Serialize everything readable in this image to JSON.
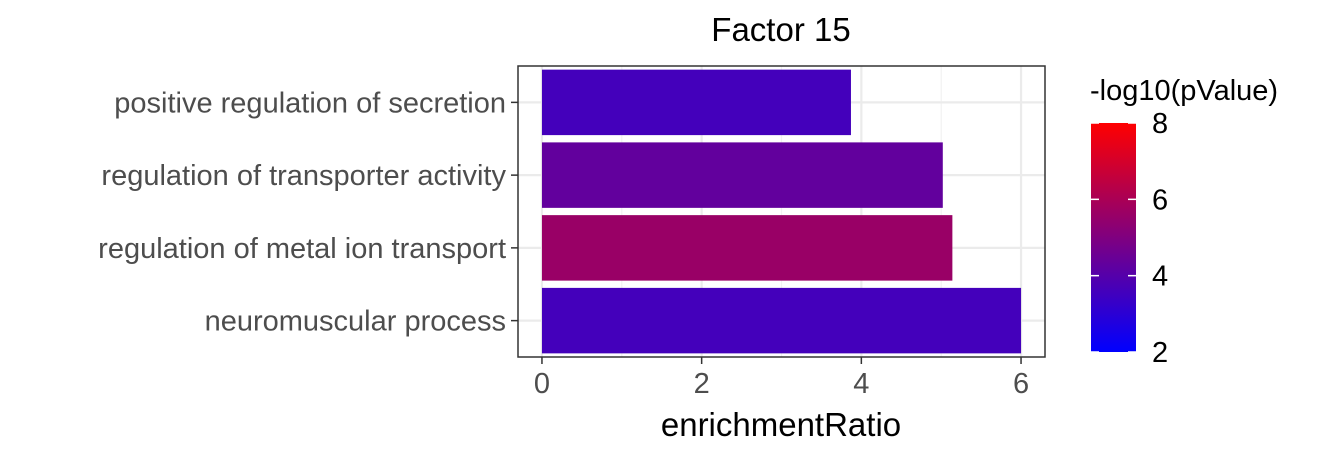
{
  "chart_data": {
    "type": "bar",
    "orientation": "horizontal",
    "title": "Factor 15",
    "xlabel": "enrichmentRatio",
    "ylabel": "",
    "xlim": [
      -0.3,
      6.3
    ],
    "xticks": [
      0,
      2,
      4,
      6
    ],
    "grid": true,
    "categories": [
      "positive regulation of secretion",
      "regulation of transporter activity",
      "regulation of metal ion transport",
      "neuromuscular process"
    ],
    "values": [
      3.87,
      5.02,
      5.14,
      6.0
    ],
    "color_values": [
      3.6,
      4.3,
      5.6,
      3.6
    ],
    "colorbar": {
      "title": "-log10(pValue)",
      "min": 2,
      "max": 8,
      "ticks": [
        2,
        4,
        6,
        8
      ],
      "low_color": "#0000ff",
      "high_color": "#ff0000",
      "position": "right"
    }
  }
}
